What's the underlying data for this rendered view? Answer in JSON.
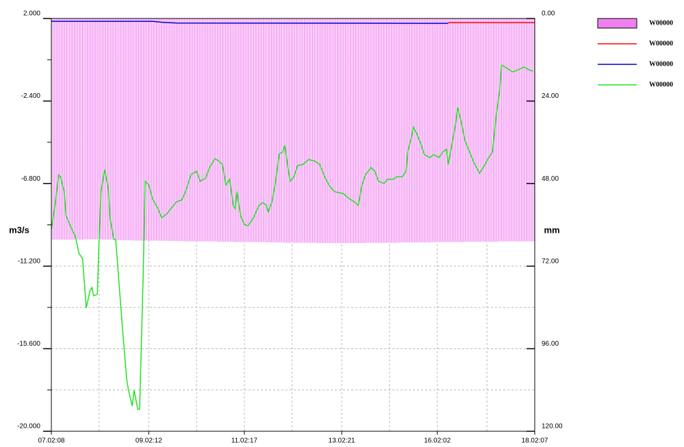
{
  "chart_data": {
    "type": "line",
    "y_label": "m3/s",
    "y2_label": "mm",
    "xlim": [
      0,
      263
    ],
    "xticks": [
      {
        "value": 0,
        "label": "07.02:08"
      },
      {
        "value": 53,
        "label": "09.02:12"
      },
      {
        "value": 105,
        "label": "11.02:17"
      },
      {
        "value": 158,
        "label": "13.02:21"
      },
      {
        "value": 210,
        "label": "16.02:02"
      },
      {
        "value": 263,
        "label": "18.02:07"
      }
    ],
    "xticks_minor": [
      26,
      79,
      131,
      184,
      237
    ],
    "ylim": [
      -20,
      2
    ],
    "yticks": [
      {
        "value": 2,
        "label": "2.000"
      },
      {
        "value": -2.4,
        "label": "-2.400"
      },
      {
        "value": -6.8,
        "label": "-6.800"
      },
      {
        "value": -11.2,
        "label": "-11.200"
      },
      {
        "value": -15.6,
        "label": "-15.600"
      },
      {
        "value": -20,
        "label": "-20.000"
      }
    ],
    "yticks_minor": [
      -0.2,
      -4.6,
      -9,
      -13.4,
      -17.8
    ],
    "y2lim": [
      0,
      120
    ],
    "y2_inverted": true,
    "y2ticks": [
      {
        "value": 0,
        "label": "0.00"
      },
      {
        "value": 24,
        "label": "24.00"
      },
      {
        "value": 48,
        "label": "48.00"
      },
      {
        "value": 72,
        "label": "72.00"
      },
      {
        "value": 96,
        "label": "96.00"
      },
      {
        "value": 120,
        "label": "120.00"
      }
    ],
    "grid": true,
    "series": [
      {
        "name": "W00000",
        "type": "bar",
        "axis": "y2",
        "color": "#f080f0",
        "x": [
          0,
          9,
          18,
          27,
          36,
          45,
          54,
          63,
          72,
          81,
          90,
          99,
          108,
          117,
          126,
          135,
          144,
          153,
          162,
          171,
          180,
          189,
          198,
          207,
          216,
          225,
          234,
          243,
          252,
          261
        ],
        "values": [
          64.3,
          64.3,
          64.2,
          64.3,
          64.5,
          64.6,
          64.6,
          64.7,
          64.8,
          64.8,
          64.9,
          65.0,
          65.0,
          65.1,
          65.2,
          65.2,
          65.3,
          65.3,
          65.3,
          65.2,
          65.2,
          65.1,
          65.1,
          65.0,
          65.0,
          64.9,
          64.9,
          64.8,
          64.8,
          64.8
        ]
      },
      {
        "name": "W00000",
        "type": "line",
        "axis": "y",
        "color": "#ff0000",
        "x": [
          216,
          263
        ],
        "values": [
          1.78,
          1.78
        ]
      },
      {
        "name": "W00000",
        "type": "line",
        "axis": "y",
        "color": "#0000cc",
        "x": [
          0,
          55,
          60,
          68,
          216
        ],
        "values": [
          1.85,
          1.85,
          1.8,
          1.76,
          1.74
        ]
      },
      {
        "name": "W00000",
        "type": "line",
        "axis": "y",
        "color": "#22e022",
        "x": [
          0,
          2,
          4,
          5,
          7,
          8,
          10,
          13,
          15,
          17,
          19,
          21,
          22,
          23,
          25,
          26,
          27,
          29,
          31,
          32,
          34,
          35,
          37,
          39,
          41,
          42,
          44,
          45,
          47,
          48,
          50,
          51,
          53,
          55,
          58,
          60,
          63,
          65,
          68,
          71,
          73,
          76,
          79,
          81,
          84,
          86,
          89,
          91,
          93,
          95,
          97,
          99,
          100,
          101,
          103,
          105,
          107,
          110,
          113,
          115,
          117,
          118,
          120,
          122,
          124,
          126,
          127,
          129,
          130,
          132,
          134,
          137,
          140,
          143,
          146,
          149,
          151,
          154,
          159,
          162,
          165,
          167,
          169,
          171,
          174,
          176,
          178,
          181,
          183,
          186,
          188,
          191,
          193,
          194,
          196,
          197,
          199,
          201,
          203,
          206,
          208,
          211,
          213,
          215,
          216,
          218,
          220,
          221,
          223,
          225,
          228,
          230,
          233,
          236,
          238,
          240,
          242,
          244,
          245,
          248,
          251,
          254,
          257,
          260,
          262
        ],
        "values": [
          -9.24,
          -7.96,
          -6.35,
          -6.43,
          -7.23,
          -8.51,
          -8.98,
          -9.6,
          -10.51,
          -10.81,
          -13.43,
          -12.52,
          -12.34,
          -12.78,
          -12.7,
          -9.78,
          -7.23,
          -6.06,
          -7.05,
          -8.69,
          -9.78,
          -9.78,
          -12.34,
          -14.89,
          -17.26,
          -17.81,
          -18.65,
          -17.81,
          -18.83,
          -18.83,
          -11.61,
          -6.68,
          -6.87,
          -7.6,
          -8.14,
          -8.62,
          -8.4,
          -8.14,
          -7.78,
          -7.67,
          -7.23,
          -6.32,
          -6.14,
          -6.68,
          -6.5,
          -5.95,
          -5.48,
          -5.59,
          -5.77,
          -6.87,
          -6.57,
          -7.96,
          -8.14,
          -7.23,
          -8.51,
          -8.98,
          -9.05,
          -8.62,
          -7.96,
          -7.81,
          -7.96,
          -8.32,
          -7.78,
          -6.68,
          -5.22,
          -5.11,
          -4.75,
          -6.14,
          -6.68,
          -6.43,
          -5.84,
          -5.77,
          -5.52,
          -5.59,
          -5.77,
          -6.5,
          -6.87,
          -7.23,
          -7.34,
          -7.6,
          -7.78,
          -7.96,
          -6.87,
          -6.32,
          -5.95,
          -6.14,
          -6.68,
          -6.79,
          -6.57,
          -6.57,
          -6.43,
          -6.43,
          -6.14,
          -5.04,
          -4.31,
          -3.8,
          -4.17,
          -4.68,
          -5.26,
          -5.41,
          -5.26,
          -5.41,
          -5.11,
          -4.97,
          -5.77,
          -4.68,
          -3.58,
          -2.74,
          -3.51,
          -4.49,
          -5.22,
          -5.7,
          -6.25,
          -5.77,
          -5.41,
          -5.11,
          -3.22,
          -1.76,
          -0.48,
          -0.66,
          -0.85,
          -0.74,
          -0.59,
          -0.74,
          -0.81
        ]
      }
    ]
  }
}
